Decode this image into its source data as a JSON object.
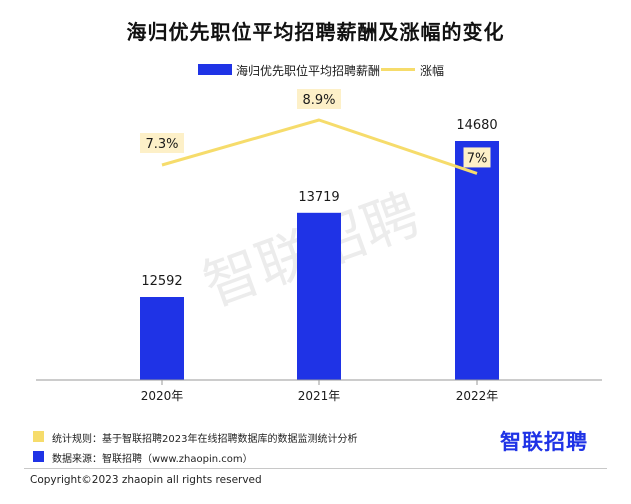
{
  "chart_data": {
    "type": "bar",
    "title": "海归优先职位平均招聘薪酬及涨幅的变化",
    "categories": [
      "2020年",
      "2021年",
      "2022年"
    ],
    "series": [
      {
        "name": "海归优先职位平均招聘薪酬",
        "type": "bar",
        "values": [
          12592,
          13719,
          14680
        ],
        "labels": [
          "12592",
          "13719",
          "14680"
        ],
        "color": "#1f33e6"
      },
      {
        "name": "涨幅",
        "type": "line",
        "values": [
          7.3,
          8.9,
          7.0
        ],
        "labels": [
          "7.3%",
          "8.9%",
          "7%"
        ],
        "unit": "%",
        "color": "#f6dc6b"
      }
    ],
    "legend_position": "top-center",
    "grid": false,
    "watermark": "智联招聘"
  },
  "colors": {
    "bar": "#1f33e6",
    "line": "#f6dc6b",
    "label_box": "#fdf0c8",
    "axis": "#9a9a9a"
  },
  "footer": {
    "note_rules": "统计规则：基于智联招聘2023年在线招聘数据库的数据监测统计分析",
    "note_source": "数据来源：智联招聘（www.zhaopin.com）",
    "copyright": "Copyright©2023 zhaopin all rights reserved",
    "logo": "智联招聘"
  }
}
